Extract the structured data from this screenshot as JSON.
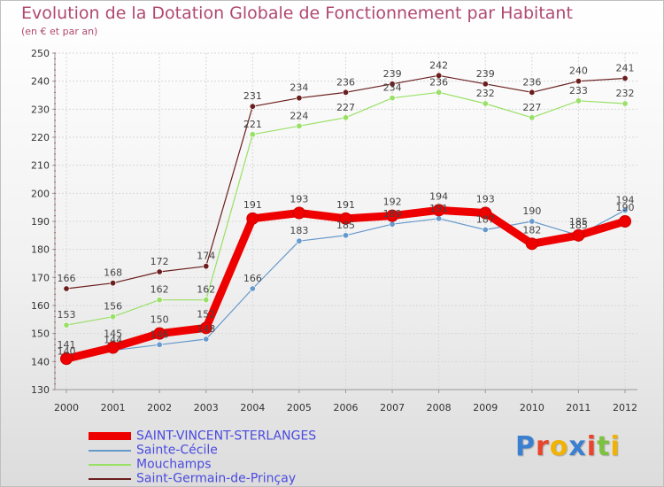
{
  "header": {
    "title": "Evolution de la Dotation Globale de Fonctionnement par Habitant",
    "subtitle": "(en € et par an)"
  },
  "chart_data": {
    "type": "line",
    "title": "Evolution de la Dotation Globale de Fonctionnement par Habitant",
    "subtitle": "(en € et par an)",
    "xlabel": "",
    "ylabel": "",
    "categories": [
      "2000",
      "2001",
      "2002",
      "2003",
      "2004",
      "2005",
      "2006",
      "2007",
      "2008",
      "2009",
      "2010",
      "2011",
      "2012"
    ],
    "ylim": [
      130,
      250
    ],
    "yticks": [
      130,
      140,
      150,
      160,
      170,
      180,
      190,
      200,
      210,
      220,
      230,
      240,
      250
    ],
    "grid": true,
    "legend_position": "bottom-left",
    "series": [
      {
        "name": "SAINT-VINCENT-STERLANGES",
        "color": "#ee0000",
        "values": [
          141,
          145,
          150,
          152,
          191,
          193,
          191,
          192,
          194,
          193,
          182,
          185,
          190
        ]
      },
      {
        "name": "Sainte-Cécile",
        "color": "#6699cc",
        "values": [
          140,
          144,
          146,
          148,
          166,
          183,
          185,
          189,
          191,
          187,
          190,
          185,
          194
        ]
      },
      {
        "name": "Mouchamps",
        "color": "#99e066",
        "values": [
          153,
          156,
          162,
          162,
          221,
          224,
          227,
          234,
          236,
          232,
          227,
          233,
          232
        ]
      },
      {
        "name": "Saint-Germain-de-Prinçay",
        "color": "#6b1e1e",
        "values": [
          166,
          168,
          172,
          174,
          231,
          234,
          236,
          239,
          242,
          239,
          236,
          240,
          241
        ]
      }
    ]
  },
  "logo": {
    "letters": [
      "P",
      "r",
      "o",
      "x",
      "i",
      "t",
      "i"
    ],
    "colors": [
      "#3a7fd0",
      "#e8452c",
      "#f2b200",
      "#3a7fd0",
      "#e8452c",
      "#7cc23f",
      "#f2b200"
    ]
  }
}
